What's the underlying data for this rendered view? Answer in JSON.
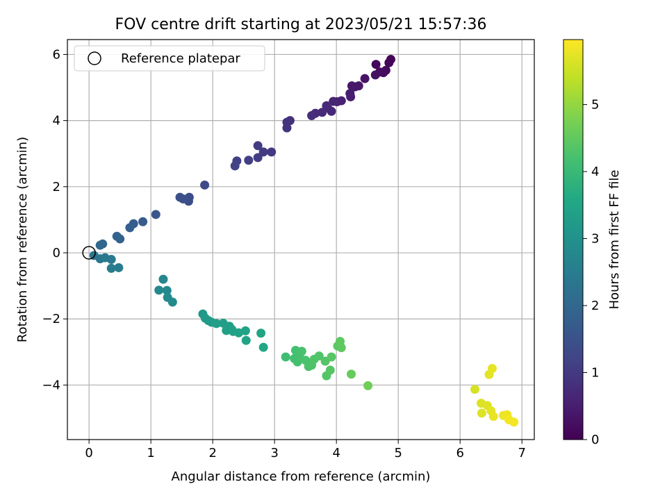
{
  "chart_data": {
    "type": "scatter",
    "title": "FOV centre drift starting at 2023/05/21 15:57:36",
    "xlabel": "Angular distance from reference (arcmin)",
    "ylabel": "Rotation from reference (arcmin)",
    "xlim": [
      -0.35,
      7.2
    ],
    "ylim": [
      -5.65,
      6.45
    ],
    "xticks": [
      0,
      1,
      2,
      3,
      4,
      5,
      6,
      7
    ],
    "yticks": [
      -4,
      -2,
      0,
      2,
      4,
      6
    ],
    "grid": true,
    "legend": {
      "placement": "top-left",
      "entries": [
        "Reference platepar"
      ]
    },
    "reference_point": {
      "x": 0,
      "y": 0,
      "label": "Reference platepar"
    },
    "colorbar": {
      "label": "Hours from first FF file",
      "colormap": "viridis",
      "range": [
        0,
        5.97
      ],
      "ticks": [
        0,
        1,
        2,
        3,
        4,
        5
      ]
    },
    "points": [
      {
        "x": 4.88,
        "y": 5.85,
        "h": 0.05
      },
      {
        "x": 4.85,
        "y": 5.75,
        "h": 0.08
      },
      {
        "x": 4.64,
        "y": 5.7,
        "h": 0.1
      },
      {
        "x": 4.8,
        "y": 5.52,
        "h": 0.15
      },
      {
        "x": 4.76,
        "y": 5.45,
        "h": 0.2
      },
      {
        "x": 4.7,
        "y": 5.47,
        "h": 0.22
      },
      {
        "x": 4.63,
        "y": 5.38,
        "h": 0.25
      },
      {
        "x": 4.46,
        "y": 5.27,
        "h": 0.3
      },
      {
        "x": 4.36,
        "y": 5.05,
        "h": 0.35
      },
      {
        "x": 4.3,
        "y": 5.02,
        "h": 0.38
      },
      {
        "x": 4.25,
        "y": 5.05,
        "h": 0.4
      },
      {
        "x": 4.22,
        "y": 4.82,
        "h": 0.45
      },
      {
        "x": 4.23,
        "y": 4.72,
        "h": 0.5
      },
      {
        "x": 4.08,
        "y": 4.6,
        "h": 0.55
      },
      {
        "x": 4.01,
        "y": 4.57,
        "h": 0.58
      },
      {
        "x": 3.95,
        "y": 4.58,
        "h": 0.6
      },
      {
        "x": 3.92,
        "y": 4.28,
        "h": 0.65
      },
      {
        "x": 3.86,
        "y": 4.38,
        "h": 0.68
      },
      {
        "x": 3.84,
        "y": 4.45,
        "h": 0.7
      },
      {
        "x": 3.77,
        "y": 4.25,
        "h": 0.72
      },
      {
        "x": 3.66,
        "y": 4.22,
        "h": 0.75
      },
      {
        "x": 3.6,
        "y": 4.15,
        "h": 0.8
      },
      {
        "x": 3.25,
        "y": 4.0,
        "h": 0.85
      },
      {
        "x": 3.2,
        "y": 3.95,
        "h": 0.88
      },
      {
        "x": 3.2,
        "y": 3.78,
        "h": 0.9
      },
      {
        "x": 2.95,
        "y": 3.05,
        "h": 1.0
      },
      {
        "x": 2.82,
        "y": 3.05,
        "h": 1.02
      },
      {
        "x": 2.73,
        "y": 3.24,
        "h": 1.05
      },
      {
        "x": 2.73,
        "y": 2.88,
        "h": 1.08
      },
      {
        "x": 2.58,
        "y": 2.8,
        "h": 1.1
      },
      {
        "x": 2.39,
        "y": 2.78,
        "h": 1.12
      },
      {
        "x": 2.36,
        "y": 2.63,
        "h": 1.15
      },
      {
        "x": 1.87,
        "y": 2.05,
        "h": 1.3
      },
      {
        "x": 1.62,
        "y": 1.68,
        "h": 1.4
      },
      {
        "x": 1.61,
        "y": 1.56,
        "h": 1.42
      },
      {
        "x": 1.52,
        "y": 1.63,
        "h": 1.45
      },
      {
        "x": 1.47,
        "y": 1.68,
        "h": 1.47
      },
      {
        "x": 1.08,
        "y": 1.16,
        "h": 1.6
      },
      {
        "x": 0.87,
        "y": 0.94,
        "h": 1.7
      },
      {
        "x": 0.72,
        "y": 0.88,
        "h": 1.75
      },
      {
        "x": 0.66,
        "y": 0.76,
        "h": 1.78
      },
      {
        "x": 0.5,
        "y": 0.42,
        "h": 1.85
      },
      {
        "x": 0.45,
        "y": 0.5,
        "h": 1.88
      },
      {
        "x": 0.22,
        "y": 0.27,
        "h": 1.95
      },
      {
        "x": 0.18,
        "y": 0.23,
        "h": 1.98
      },
      {
        "x": 0.08,
        "y": -0.08,
        "h": 2.3
      },
      {
        "x": 0.18,
        "y": -0.18,
        "h": 2.35
      },
      {
        "x": 0.26,
        "y": -0.15,
        "h": 2.38
      },
      {
        "x": 0.36,
        "y": -0.2,
        "h": 2.4
      },
      {
        "x": 0.36,
        "y": -0.47,
        "h": 2.45
      },
      {
        "x": 0.48,
        "y": -0.45,
        "h": 2.48
      },
      {
        "x": 1.2,
        "y": -0.8,
        "h": 2.75
      },
      {
        "x": 1.13,
        "y": -1.13,
        "h": 2.78
      },
      {
        "x": 1.26,
        "y": -1.14,
        "h": 2.8
      },
      {
        "x": 1.27,
        "y": -1.35,
        "h": 2.82
      },
      {
        "x": 1.35,
        "y": -1.49,
        "h": 2.85
      },
      {
        "x": 1.84,
        "y": -1.85,
        "h": 3.2
      },
      {
        "x": 1.88,
        "y": -1.98,
        "h": 3.22
      },
      {
        "x": 1.93,
        "y": -2.05,
        "h": 3.25
      },
      {
        "x": 1.98,
        "y": -2.1,
        "h": 3.28
      },
      {
        "x": 2.06,
        "y": -2.14,
        "h": 3.3
      },
      {
        "x": 2.17,
        "y": -2.13,
        "h": 3.32
      },
      {
        "x": 2.22,
        "y": -2.35,
        "h": 3.35
      },
      {
        "x": 2.27,
        "y": -2.22,
        "h": 3.37
      },
      {
        "x": 2.31,
        "y": -2.32,
        "h": 3.38
      },
      {
        "x": 2.33,
        "y": -2.38,
        "h": 3.4
      },
      {
        "x": 2.42,
        "y": -2.42,
        "h": 3.42
      },
      {
        "x": 2.53,
        "y": -2.36,
        "h": 3.44
      },
      {
        "x": 2.54,
        "y": -2.65,
        "h": 3.45
      },
      {
        "x": 2.78,
        "y": -2.43,
        "h": 3.5
      },
      {
        "x": 2.82,
        "y": -2.86,
        "h": 3.52
      },
      {
        "x": 3.18,
        "y": -3.15,
        "h": 4.1
      },
      {
        "x": 3.32,
        "y": -3.2,
        "h": 4.15
      },
      {
        "x": 3.34,
        "y": -2.95,
        "h": 4.17
      },
      {
        "x": 3.37,
        "y": -3.3,
        "h": 4.18
      },
      {
        "x": 3.4,
        "y": -3.1,
        "h": 4.2
      },
      {
        "x": 3.44,
        "y": -2.98,
        "h": 4.22
      },
      {
        "x": 3.5,
        "y": -3.25,
        "h": 4.24
      },
      {
        "x": 3.55,
        "y": -3.44,
        "h": 4.26
      },
      {
        "x": 3.6,
        "y": -3.4,
        "h": 4.28
      },
      {
        "x": 3.64,
        "y": -3.22,
        "h": 4.3
      },
      {
        "x": 3.72,
        "y": -3.12,
        "h": 4.32
      },
      {
        "x": 3.82,
        "y": -3.28,
        "h": 4.34
      },
      {
        "x": 3.84,
        "y": -3.72,
        "h": 4.36
      },
      {
        "x": 3.9,
        "y": -3.55,
        "h": 4.38
      },
      {
        "x": 3.92,
        "y": -3.15,
        "h": 4.4
      },
      {
        "x": 4.02,
        "y": -2.82,
        "h": 4.45
      },
      {
        "x": 4.06,
        "y": -2.68,
        "h": 4.47
      },
      {
        "x": 4.08,
        "y": -2.87,
        "h": 4.48
      },
      {
        "x": 4.24,
        "y": -3.67,
        "h": 4.55
      },
      {
        "x": 4.51,
        "y": -4.02,
        "h": 4.65
      },
      {
        "x": 6.24,
        "y": -4.13,
        "h": 5.6
      },
      {
        "x": 6.34,
        "y": -4.55,
        "h": 5.65
      },
      {
        "x": 6.35,
        "y": -4.85,
        "h": 5.67
      },
      {
        "x": 6.44,
        "y": -4.62,
        "h": 5.7
      },
      {
        "x": 6.47,
        "y": -3.68,
        "h": 5.72
      },
      {
        "x": 6.5,
        "y": -4.78,
        "h": 5.74
      },
      {
        "x": 6.52,
        "y": -3.5,
        "h": 5.75
      },
      {
        "x": 6.54,
        "y": -4.95,
        "h": 5.78
      },
      {
        "x": 6.7,
        "y": -4.92,
        "h": 5.82
      },
      {
        "x": 6.76,
        "y": -4.9,
        "h": 5.84
      },
      {
        "x": 6.79,
        "y": -5.05,
        "h": 5.87
      },
      {
        "x": 6.87,
        "y": -5.12,
        "h": 5.9
      }
    ]
  }
}
